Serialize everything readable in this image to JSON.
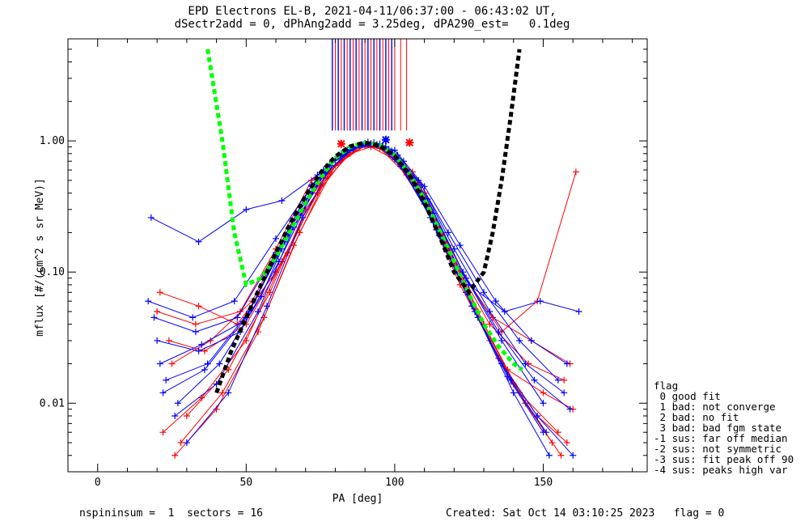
{
  "header": {
    "title_line1": "EPD Electrons EL-B, 2021-04-11/06:37:00 - 06:43:02 UT,",
    "title_line2": "dSectr2add = 0, dPhAng2add = 3.25deg, dPA290_est=   0.1deg"
  },
  "footer": {
    "left": "nspininsum =  1  sectors = 16",
    "right": "Created: Sat Oct 14 03:10:25 2023   flag = 0"
  },
  "legend": {
    "title": "flag",
    "entries": [
      " 0 good fit",
      " 1 bad: not converge",
      " 2 bad: no fit",
      " 3 bad: bad fgm state",
      "-1 sus: far off median",
      "-2 sus: not symmetric",
      "-3 sus: fit peak off 90",
      "-4 sus: peaks high var"
    ]
  },
  "colors": {
    "series_red": "#ff0000",
    "series_blue": "#0000ff",
    "fit_green": "#00ff00",
    "fit_black": "#000000"
  },
  "chart_data": {
    "type": "line",
    "log_y": true,
    "xlabel": "PA [deg]",
    "ylabel": "mflux [#/(cm^2 s sr MeV)]",
    "xlim": [
      -10,
      185
    ],
    "ylim": [
      0.003,
      6
    ],
    "xticks": [
      0,
      50,
      100,
      150
    ],
    "xtick_labels": [
      "0",
      "50",
      "100",
      "150"
    ],
    "yticks": [
      0.01,
      0.1,
      1.0
    ],
    "ytick_labels": [
      "0.01",
      "0.10",
      "1.00"
    ],
    "red_vertical_markers_x": [
      80,
      82,
      84,
      86,
      88,
      90,
      92,
      94,
      96,
      98,
      100,
      102,
      104
    ],
    "blue_vertical_markers_x": [
      79,
      81,
      83,
      85,
      87,
      89,
      91,
      93,
      95,
      97,
      99
    ],
    "red_traces": [
      {
        "x": [
          22,
          35,
          50,
          62,
          75,
          85,
          92,
          100,
          110,
          122,
          135,
          148,
          158
        ],
        "y": [
          0.006,
          0.011,
          0.03,
          0.12,
          0.45,
          0.8,
          0.9,
          0.72,
          0.33,
          0.08,
          0.022,
          0.008,
          0.005
        ]
      },
      {
        "x": [
          25,
          38,
          52,
          65,
          78,
          88,
          95,
          104,
          114,
          126,
          138,
          150,
          160
        ],
        "y": [
          0.02,
          0.03,
          0.06,
          0.22,
          0.6,
          0.9,
          0.88,
          0.55,
          0.22,
          0.055,
          0.018,
          0.012,
          0.009
        ]
      },
      {
        "x": [
          20,
          33,
          48,
          60,
          72,
          84,
          90,
          98,
          108,
          120,
          132,
          145,
          157
        ],
        "y": [
          0.05,
          0.04,
          0.05,
          0.15,
          0.5,
          0.85,
          0.95,
          0.82,
          0.42,
          0.12,
          0.04,
          0.02,
          0.015
        ]
      },
      {
        "x": [
          28,
          42,
          56,
          68,
          80,
          90,
          98,
          108,
          118,
          130,
          142,
          155
        ],
        "y": [
          0.005,
          0.012,
          0.045,
          0.2,
          0.65,
          0.92,
          0.85,
          0.48,
          0.16,
          0.04,
          0.012,
          0.006
        ]
      },
      {
        "x": [
          24,
          36,
          50,
          64,
          76,
          86,
          94,
          102,
          112,
          124,
          136,
          148,
          161
        ],
        "y": [
          0.03,
          0.025,
          0.04,
          0.14,
          0.52,
          0.88,
          0.92,
          0.7,
          0.3,
          0.09,
          0.035,
          0.06,
          0.58
        ]
      },
      {
        "x": [
          30,
          44,
          58,
          70,
          82,
          92,
          100,
          110,
          120,
          132,
          144,
          156
        ],
        "y": [
          0.008,
          0.018,
          0.07,
          0.3,
          0.75,
          0.95,
          0.78,
          0.38,
          0.12,
          0.03,
          0.01,
          0.004
        ]
      },
      {
        "x": [
          21,
          34,
          47,
          60,
          74,
          84,
          92,
          100,
          110,
          121,
          133,
          146,
          159
        ],
        "y": [
          0.07,
          0.055,
          0.04,
          0.1,
          0.4,
          0.78,
          0.96,
          0.8,
          0.4,
          0.11,
          0.045,
          0.03,
          0.02
        ]
      },
      {
        "x": [
          26,
          40,
          54,
          66,
          78,
          88,
          96,
          106,
          116,
          128,
          140,
          153
        ],
        "y": [
          0.004,
          0.009,
          0.035,
          0.16,
          0.58,
          0.9,
          0.9,
          0.58,
          0.2,
          0.05,
          0.014,
          0.005
        ]
      }
    ],
    "blue_traces": [
      {
        "x": [
          18,
          34,
          50,
          62,
          74,
          84,
          92,
          100,
          110,
          122,
          134,
          146,
          158
        ],
        "y": [
          0.26,
          0.17,
          0.3,
          0.35,
          0.55,
          0.85,
          0.95,
          0.85,
          0.45,
          0.16,
          0.06,
          0.03,
          0.02
        ]
      },
      {
        "x": [
          22,
          36,
          50,
          63,
          76,
          86,
          94,
          102,
          112,
          124,
          136,
          148,
          160
        ],
        "y": [
          0.012,
          0.018,
          0.045,
          0.17,
          0.55,
          0.88,
          0.93,
          0.66,
          0.26,
          0.07,
          0.02,
          0.008,
          0.004
        ]
      },
      {
        "x": [
          17,
          32,
          46,
          60,
          72,
          82,
          90,
          98,
          108,
          118,
          130,
          142,
          155
        ],
        "y": [
          0.06,
          0.045,
          0.06,
          0.18,
          0.45,
          0.8,
          0.96,
          0.86,
          0.5,
          0.2,
          0.07,
          0.03,
          0.015
        ]
      },
      {
        "x": [
          26,
          40,
          54,
          66,
          78,
          88,
          96,
          104,
          114,
          126,
          138,
          150
        ],
        "y": [
          0.008,
          0.014,
          0.05,
          0.22,
          0.65,
          0.93,
          0.92,
          0.6,
          0.21,
          0.055,
          0.016,
          0.006
        ]
      },
      {
        "x": [
          20,
          34,
          48,
          61,
          74,
          85,
          93,
          101,
          111,
          123,
          135,
          147,
          159
        ],
        "y": [
          0.03,
          0.025,
          0.035,
          0.12,
          0.48,
          0.86,
          0.97,
          0.78,
          0.36,
          0.1,
          0.035,
          0.015,
          0.009
        ]
      },
      {
        "x": [
          30,
          44,
          57,
          69,
          80,
          90,
          98,
          106,
          116,
          128,
          140,
          152
        ],
        "y": [
          0.005,
          0.012,
          0.055,
          0.26,
          0.72,
          0.95,
          0.86,
          0.52,
          0.18,
          0.045,
          0.012,
          0.004
        ]
      },
      {
        "x": [
          23,
          37,
          51,
          64,
          76,
          86,
          94,
          102,
          113,
          125,
          137,
          149,
          162
        ],
        "y": [
          0.015,
          0.02,
          0.05,
          0.2,
          0.6,
          0.9,
          0.94,
          0.64,
          0.24,
          0.08,
          0.05,
          0.06,
          0.05
        ]
      },
      {
        "x": [
          19,
          33,
          47,
          60,
          72,
          83,
          91,
          99,
          109,
          120,
          132,
          144,
          157
        ],
        "y": [
          0.045,
          0.035,
          0.045,
          0.14,
          0.46,
          0.82,
          0.98,
          0.84,
          0.46,
          0.15,
          0.05,
          0.02,
          0.012
        ]
      },
      {
        "x": [
          27,
          41,
          55,
          67,
          79,
          89,
          97,
          105,
          115,
          127,
          139,
          151
        ],
        "y": [
          0.01,
          0.02,
          0.065,
          0.27,
          0.7,
          0.94,
          0.9,
          0.56,
          0.19,
          0.05,
          0.015,
          0.006
        ]
      },
      {
        "x": [
          21,
          35,
          49,
          62,
          75,
          86,
          95,
          103,
          113,
          124,
          136,
          150
        ],
        "y": [
          0.02,
          0.028,
          0.042,
          0.15,
          0.52,
          0.87,
          0.95,
          0.7,
          0.28,
          0.09,
          0.03,
          0.01
        ]
      }
    ],
    "fit_curves": [
      {
        "color": "green",
        "x": [
          37,
          42,
          46,
          50,
          55,
          60,
          65,
          70,
          75,
          80,
          85,
          90,
          95,
          100,
          105,
          110,
          115,
          120,
          125,
          130,
          135,
          140,
          143
        ],
        "y": [
          5.0,
          1.0,
          0.2,
          0.08,
          0.09,
          0.13,
          0.21,
          0.34,
          0.52,
          0.74,
          0.9,
          0.97,
          0.93,
          0.78,
          0.56,
          0.36,
          0.21,
          0.12,
          0.068,
          0.04,
          0.027,
          0.02,
          0.018
        ]
      },
      {
        "color": "black",
        "x": [
          40,
          45,
          50,
          55,
          60,
          65,
          70,
          75,
          80,
          85,
          90,
          95,
          100,
          105,
          110,
          115,
          120,
          125,
          130,
          133,
          136,
          139,
          142
        ],
        "y": [
          0.012,
          0.025,
          0.045,
          0.08,
          0.14,
          0.24,
          0.38,
          0.57,
          0.76,
          0.91,
          0.97,
          0.92,
          0.77,
          0.55,
          0.34,
          0.19,
          0.1,
          0.07,
          0.1,
          0.2,
          0.5,
          1.5,
          5.0
        ]
      }
    ],
    "fit_peak_markers": [
      {
        "color": "red",
        "x": 82,
        "y": 0.95
      },
      {
        "color": "red",
        "x": 105,
        "y": 0.97
      },
      {
        "color": "blue",
        "x": 97,
        "y": 1.02
      }
    ]
  }
}
